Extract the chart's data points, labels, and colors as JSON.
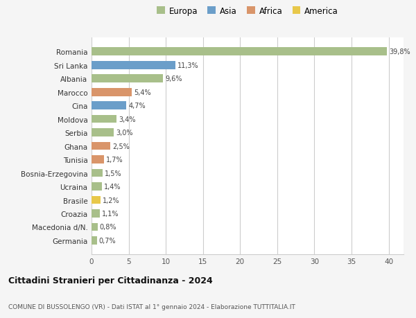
{
  "categories": [
    "Romania",
    "Sri Lanka",
    "Albania",
    "Marocco",
    "Cina",
    "Moldova",
    "Serbia",
    "Ghana",
    "Tunisia",
    "Bosnia-Erzegovina",
    "Ucraina",
    "Brasile",
    "Croazia",
    "Macedonia d/N.",
    "Germania"
  ],
  "values": [
    39.8,
    11.3,
    9.6,
    5.4,
    4.7,
    3.4,
    3.0,
    2.5,
    1.7,
    1.5,
    1.4,
    1.2,
    1.1,
    0.8,
    0.7
  ],
  "labels": [
    "39,8%",
    "11,3%",
    "9,6%",
    "5,4%",
    "4,7%",
    "3,4%",
    "3,0%",
    "2,5%",
    "1,7%",
    "1,5%",
    "1,4%",
    "1,2%",
    "1,1%",
    "0,8%",
    "0,7%"
  ],
  "colors": [
    "#a8bf8a",
    "#6b9ec9",
    "#a8bf8a",
    "#d9956a",
    "#6b9ec9",
    "#a8bf8a",
    "#a8bf8a",
    "#d9956a",
    "#d9956a",
    "#a8bf8a",
    "#a8bf8a",
    "#e8c84a",
    "#a8bf8a",
    "#a8bf8a",
    "#a8bf8a"
  ],
  "legend_labels": [
    "Europa",
    "Asia",
    "Africa",
    "America"
  ],
  "legend_colors": [
    "#a8bf8a",
    "#6b9ec9",
    "#d9956a",
    "#e8c84a"
  ],
  "title": "Cittadini Stranieri per Cittadinanza - 2024",
  "subtitle": "COMUNE DI BUSSOLENGO (VR) - Dati ISTAT al 1° gennaio 2024 - Elaborazione TUTTITALIA.IT",
  "xlim": [
    0,
    42
  ],
  "xticks": [
    0,
    5,
    10,
    15,
    20,
    25,
    30,
    35,
    40
  ],
  "bg_color": "#f5f5f5",
  "bar_bg_color": "#ffffff",
  "grid_color": "#cccccc"
}
